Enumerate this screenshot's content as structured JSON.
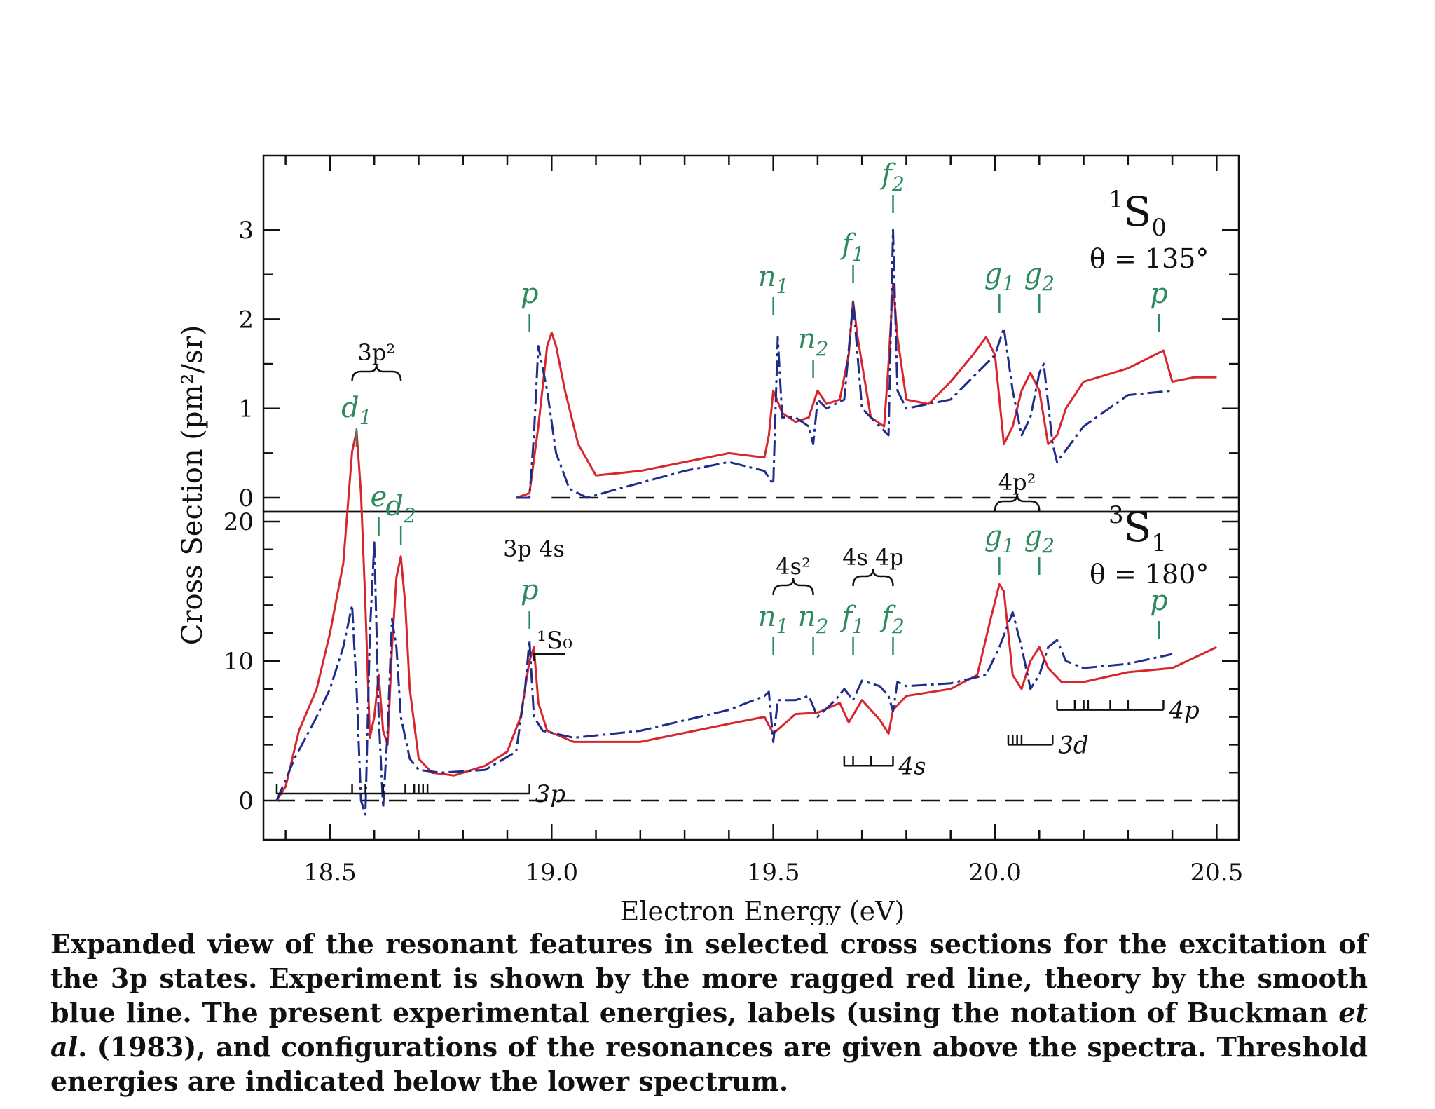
{
  "chart_data": [
    {
      "type": "line",
      "panel": "upper",
      "panel_label": {
        "main": "S",
        "sup": "1",
        "sub": "0"
      },
      "angle_label": "θ = 135°",
      "ylabel": "Cross Section (pm²/sr)",
      "xlabel": "Electron Energy (eV)",
      "xlim": [
        18.35,
        20.55
      ],
      "ylim": [
        0,
        3.4
      ],
      "yticks": [
        0,
        1,
        2,
        3
      ],
      "xticks": [
        18.5,
        19.0,
        19.5,
        20.0,
        20.5
      ],
      "series": [
        {
          "color": "#d7262e",
          "style": "solid",
          "x": [
            18.92,
            18.95,
            18.97,
            18.99,
            19.0,
            19.01,
            19.03,
            19.06,
            19.1,
            19.2,
            19.3,
            19.4,
            19.48,
            19.49,
            19.5,
            19.52,
            19.55,
            19.58,
            19.6,
            19.62,
            19.65,
            19.67,
            19.68,
            19.69,
            19.72,
            19.75,
            19.76,
            19.77,
            19.78,
            19.8,
            19.85,
            19.9,
            19.95,
            19.98,
            20.0,
            20.02,
            20.04,
            20.06,
            20.08,
            20.1,
            20.12,
            20.14,
            20.16,
            20.2,
            20.3,
            20.36,
            20.38,
            20.4,
            20.45,
            20.5
          ],
          "y": [
            0.0,
            0.05,
            0.8,
            1.7,
            1.85,
            1.7,
            1.2,
            0.6,
            0.25,
            0.3,
            0.4,
            0.5,
            0.45,
            0.7,
            1.2,
            0.95,
            0.85,
            0.9,
            1.2,
            1.05,
            1.1,
            1.6,
            2.2,
            1.8,
            0.9,
            0.8,
            1.5,
            2.4,
            1.8,
            1.1,
            1.05,
            1.3,
            1.6,
            1.8,
            1.6,
            0.6,
            0.8,
            1.2,
            1.4,
            1.2,
            0.6,
            0.7,
            1.0,
            1.3,
            1.45,
            1.6,
            1.65,
            1.3,
            1.35,
            1.35
          ]
        },
        {
          "color": "#1f2d8a",
          "style": "dashdot",
          "x": [
            18.92,
            18.95,
            18.96,
            18.97,
            18.99,
            19.01,
            19.04,
            19.08,
            19.15,
            19.3,
            19.4,
            19.48,
            19.5,
            19.51,
            19.52,
            19.55,
            19.58,
            19.59,
            19.6,
            19.62,
            19.66,
            19.68,
            19.7,
            19.74,
            19.76,
            19.77,
            19.78,
            19.8,
            19.9,
            20.0,
            20.02,
            20.04,
            20.06,
            20.08,
            20.1,
            20.11,
            20.13,
            20.14,
            20.2,
            20.3,
            20.4
          ],
          "y": [
            0.0,
            0.0,
            0.7,
            1.7,
            1.2,
            0.5,
            0.1,
            0.0,
            0.1,
            0.3,
            0.4,
            0.3,
            0.15,
            1.8,
            0.9,
            0.9,
            0.8,
            0.6,
            1.1,
            1.0,
            1.1,
            2.2,
            1.0,
            0.8,
            0.7,
            3.0,
            1.2,
            1.0,
            1.1,
            1.6,
            1.9,
            1.2,
            0.7,
            0.9,
            1.4,
            1.5,
            0.6,
            0.4,
            0.8,
            1.15,
            1.2
          ]
        }
      ],
      "annotations": [
        {
          "label": "p",
          "x": 18.95,
          "mark": true
        },
        {
          "label": "n",
          "sub": "1",
          "x": 19.5,
          "mark": true
        },
        {
          "label": "n",
          "sub": "2",
          "x": 19.59,
          "mark": true
        },
        {
          "label": "f",
          "sub": "1",
          "x": 19.68,
          "mark": true
        },
        {
          "label": "f",
          "sub": "2",
          "x": 19.77,
          "mark": true
        },
        {
          "label": "g",
          "sub": "1",
          "x": 20.01,
          "mark": true
        },
        {
          "label": "g",
          "sub": "2",
          "x": 20.1,
          "mark": true
        },
        {
          "label": "p",
          "x": 20.37,
          "mark": true
        }
      ]
    },
    {
      "type": "line",
      "panel": "lower",
      "panel_label": {
        "main": "S",
        "sup": "3",
        "sub": "1"
      },
      "angle_label": "θ = 180°",
      "ylabel": "Cross Section (pm²/sr)",
      "xlabel": "Electron Energy (eV)",
      "xlim": [
        18.35,
        20.55
      ],
      "ylim": [
        -3,
        21
      ],
      "yticks": [
        0,
        10,
        20
      ],
      "xticks": [
        18.5,
        19.0,
        19.5,
        20.0,
        20.5
      ],
      "series": [
        {
          "color": "#d7262e",
          "style": "solid",
          "x": [
            18.38,
            18.4,
            18.43,
            18.47,
            18.5,
            18.53,
            18.55,
            18.56,
            18.57,
            18.58,
            18.59,
            18.6,
            18.61,
            18.62,
            18.63,
            18.64,
            18.65,
            18.66,
            18.67,
            18.68,
            18.7,
            18.73,
            18.78,
            18.85,
            18.9,
            18.93,
            18.95,
            18.96,
            18.97,
            18.99,
            19.05,
            19.2,
            19.4,
            19.48,
            19.5,
            19.55,
            19.6,
            19.65,
            19.67,
            19.7,
            19.74,
            19.76,
            19.77,
            19.8,
            19.9,
            19.96,
            19.99,
            20.01,
            20.02,
            20.04,
            20.06,
            20.08,
            20.1,
            20.12,
            20.15,
            20.2,
            20.3,
            20.4,
            20.5
          ],
          "y": [
            0,
            1,
            5,
            8,
            12,
            17,
            25,
            26.5,
            22,
            14,
            4.5,
            6,
            9,
            5,
            4,
            11,
            16,
            17.5,
            14,
            8,
            3,
            2,
            1.8,
            2.5,
            3.5,
            6,
            10,
            11,
            7,
            5,
            4.2,
            4.2,
            5.5,
            6,
            4.8,
            6.2,
            6.3,
            7.0,
            5.6,
            7.2,
            5.8,
            4.8,
            6.5,
            7.5,
            8.0,
            9.0,
            13,
            15.5,
            15,
            9,
            8,
            10,
            11,
            9.5,
            8.5,
            8.5,
            9.2,
            9.5,
            11
          ]
        },
        {
          "color": "#1f2d8a",
          "style": "dashdot",
          "x": [
            18.38,
            18.42,
            18.47,
            18.5,
            18.53,
            18.55,
            18.56,
            18.57,
            18.58,
            18.59,
            18.6,
            18.61,
            18.62,
            18.63,
            18.64,
            18.65,
            18.66,
            18.68,
            18.7,
            18.75,
            18.85,
            18.92,
            18.94,
            18.95,
            18.96,
            18.98,
            19.05,
            19.2,
            19.4,
            19.48,
            19.49,
            19.5,
            19.51,
            19.55,
            19.58,
            19.6,
            19.64,
            19.66,
            19.68,
            19.7,
            19.74,
            19.76,
            19.77,
            19.78,
            19.8,
            19.9,
            19.98,
            20.01,
            20.04,
            20.06,
            20.08,
            20.1,
            20.12,
            20.14,
            20.16,
            20.2,
            20.3,
            20.4
          ],
          "y": [
            0,
            3,
            6,
            8,
            11,
            14,
            8,
            0,
            -1,
            12,
            18.5,
            6,
            -0.5,
            5,
            13,
            11,
            6,
            3,
            2.2,
            2,
            2.2,
            3.5,
            8,
            11.5,
            6,
            5,
            4.5,
            5,
            6.5,
            7.5,
            7.8,
            4.2,
            7.2,
            7.2,
            7.5,
            6.0,
            7.2,
            8.0,
            7.2,
            8.6,
            8.2,
            7.5,
            6.4,
            8.5,
            8.2,
            8.4,
            9.0,
            11,
            13.5,
            11,
            8,
            9,
            11,
            11.5,
            10,
            9.5,
            9.8,
            10.5
          ]
        }
      ],
      "annotations": [
        {
          "label": "d",
          "sub": "1",
          "x": 18.56,
          "mark": true
        },
        {
          "label": "e",
          "x": 18.61,
          "mark": true
        },
        {
          "label": "d",
          "sub": "2",
          "x": 18.66,
          "mark": true
        },
        {
          "label": "p",
          "x": 18.95,
          "mark": true
        },
        {
          "label": "n",
          "sub": "1",
          "x": 19.5,
          "mark": true
        },
        {
          "label": "n",
          "sub": "2",
          "x": 19.59,
          "mark": true
        },
        {
          "label": "f",
          "sub": "1",
          "x": 19.68,
          "mark": true
        },
        {
          "label": "f",
          "sub": "2",
          "x": 19.77,
          "mark": true
        },
        {
          "label": "g",
          "sub": "1",
          "x": 20.01,
          "mark": true
        },
        {
          "label": "g",
          "sub": "2",
          "x": 20.1,
          "mark": true
        },
        {
          "label": "p",
          "x": 20.37,
          "mark": true
        }
      ],
      "configurations": [
        {
          "label": "3p²",
          "x_from": 18.55,
          "x_to": 18.66,
          "brace": true
        },
        {
          "label": "3p 4s",
          "x": 18.96,
          "brace": false
        },
        {
          "label": "4s²",
          "x_from": 19.5,
          "x_to": 19.59,
          "brace": true
        },
        {
          "label": "4s 4p",
          "x_from": 19.68,
          "x_to": 19.77,
          "brace": true
        },
        {
          "label": "4p²",
          "x_from": 20.0,
          "x_to": 20.1,
          "brace": true
        }
      ],
      "state_marker": {
        "label": "¹S₀",
        "x": 18.97
      },
      "thresholds": [
        {
          "label": "3p",
          "y": 0.5,
          "x_from": 18.38,
          "x_to": 18.95,
          "ticks": [
            18.38,
            18.55,
            18.58,
            18.62,
            18.67,
            18.69,
            18.7,
            18.71,
            18.72,
            18.95
          ]
        },
        {
          "label": "4s",
          "y": 2.5,
          "x_from": 19.66,
          "x_to": 19.77,
          "ticks": [
            19.66,
            19.68,
            19.72,
            19.77
          ]
        },
        {
          "label": "3d",
          "y": 4,
          "x_from": 20.03,
          "x_to": 20.13,
          "ticks": [
            20.03,
            20.04,
            20.05,
            20.06,
            20.13
          ]
        },
        {
          "label": "4p",
          "y": 6.5,
          "x_from": 20.14,
          "x_to": 20.38,
          "ticks": [
            20.14,
            20.18,
            20.2,
            20.21,
            20.26,
            20.3,
            20.38
          ]
        }
      ]
    }
  ],
  "caption": {
    "part1": "Expanded view of the resonant features in selected cross sections for the excitation of the 3p states. Experiment is shown by the more ragged red line, theory by the smooth blue line.  The present experimental energies, labels (using the notation of Buckman ",
    "etal": "et al",
    "part2": ". (1983), and configurations of the resonances are given above the spectra. Threshold energies are indicated below the lower spectrum."
  }
}
